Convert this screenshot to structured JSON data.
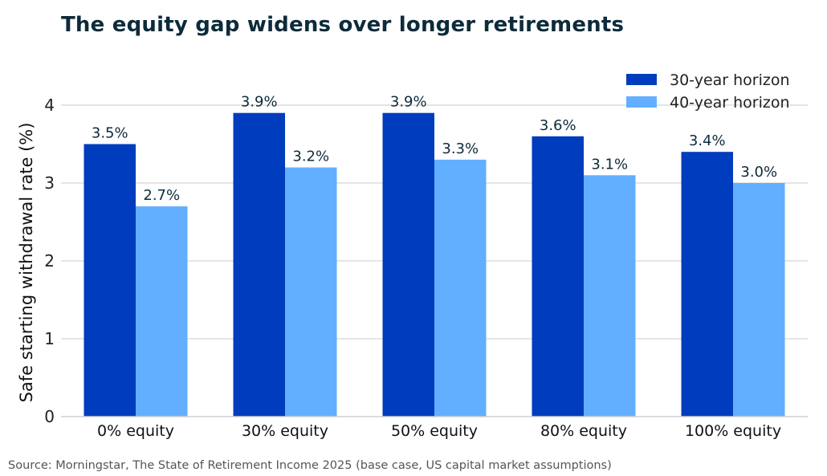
{
  "chart_data": {
    "type": "bar",
    "title": "The equity gap widens over longer retirements",
    "ylabel": "Safe starting withdrawal rate (%)",
    "xlabel": "",
    "categories": [
      "0% equity",
      "30% equity",
      "50% equity",
      "80% equity",
      "100% equity"
    ],
    "series": [
      {
        "name": "30-year horizon",
        "color": "#003cbe",
        "values": [
          3.5,
          3.9,
          3.9,
          3.6,
          3.4
        ],
        "labels": [
          "3.5%",
          "3.9%",
          "3.9%",
          "3.6%",
          "3.4%"
        ]
      },
      {
        "name": "40-year horizon",
        "color": "#62afff",
        "values": [
          2.7,
          3.2,
          3.3,
          3.1,
          3.0
        ],
        "labels": [
          "2.7%",
          "3.2%",
          "3.3%",
          "3.1%",
          "3.0%"
        ]
      }
    ],
    "ylim": [
      0,
      4.4
    ],
    "yticks": [
      "0",
      "1",
      "2",
      "3",
      "4"
    ],
    "grid": true,
    "legend_position": "top-right"
  },
  "source": "Source: Morningstar, The State of Retirement Income 2025 (base case, US capital market assumptions)"
}
